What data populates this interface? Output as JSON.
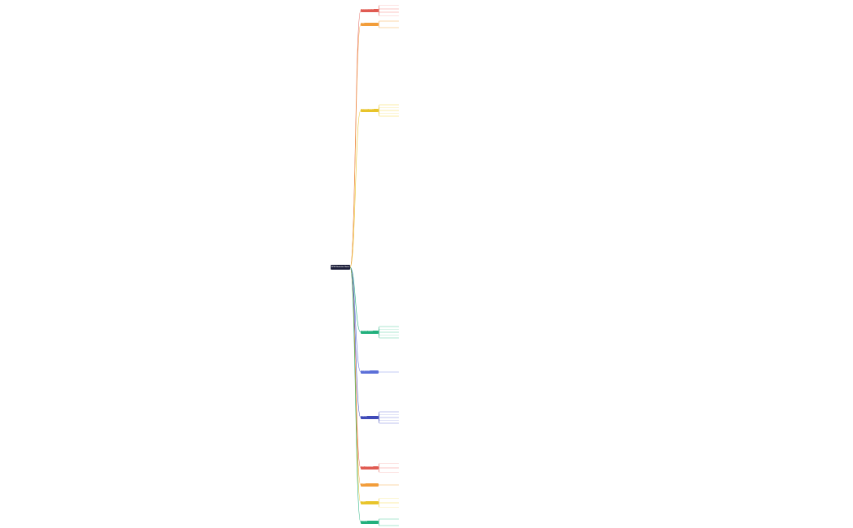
{
  "root": {
    "label": "SPSS Statistics Notes",
    "color": "#1d1f3a"
  },
  "branches": [
    {
      "id": "b1",
      "label": "Introduction to SPSS",
      "color": "#e05b52",
      "bg": "#fde2e1",
      "children": [
        "Overview",
        "Data editor",
        "Variable view",
        "Output viewer"
      ]
    },
    {
      "id": "b2",
      "label": "Data",
      "color": "#f29d3a",
      "bg": "#fdebd4",
      "children": [
        "Data entry",
        "Data import"
      ]
    },
    {
      "id": "b3",
      "label": "Descriptive Statistics",
      "color": "#e8c42a",
      "bg": "#fdf6d3",
      "children": [
        "Frequencies",
        "Descriptives",
        "Explore",
        "Crosstabs",
        "Charts"
      ]
    },
    {
      "id": "b4",
      "label": "Inferential Statistics",
      "color": "#22b07d",
      "bg": "#d6f3e8",
      "children": [
        "Hypothesis testing",
        "T-tests",
        "ANOVA",
        "Correlation",
        "Regression"
      ]
    },
    {
      "id": "b5",
      "label": "Nonparametric",
      "color": "#5b6fd8",
      "bg": "#e1e5fa",
      "children": [
        "Chi-square test"
      ]
    },
    {
      "id": "b6",
      "label": "Modeling",
      "color": "#3f4ab8",
      "bg": "#dfe1f7",
      "children": [
        "Linear models",
        "Logistic regression",
        "Factor analysis",
        "Cluster analysis",
        "Reliability"
      ]
    },
    {
      "id": "b7",
      "label": "Data Transformation",
      "color": "#e05b52",
      "bg": "#fde2e1",
      "children": [
        "Compute",
        "Recode",
        "Select cases"
      ]
    },
    {
      "id": "b8",
      "label": "Syntax",
      "color": "#f29d3a",
      "bg": "#fdebd4",
      "children": [
        "Command syntax"
      ]
    },
    {
      "id": "b9",
      "label": "Output",
      "color": "#e8c42a",
      "bg": "#fdf6d3",
      "children": [
        "Tables",
        "Reports",
        "Export"
      ]
    },
    {
      "id": "b10",
      "label": "Summary",
      "color": "#22b07d",
      "bg": "#d6f3e8",
      "children": [
        "Key points",
        "Resources"
      ]
    }
  ]
}
